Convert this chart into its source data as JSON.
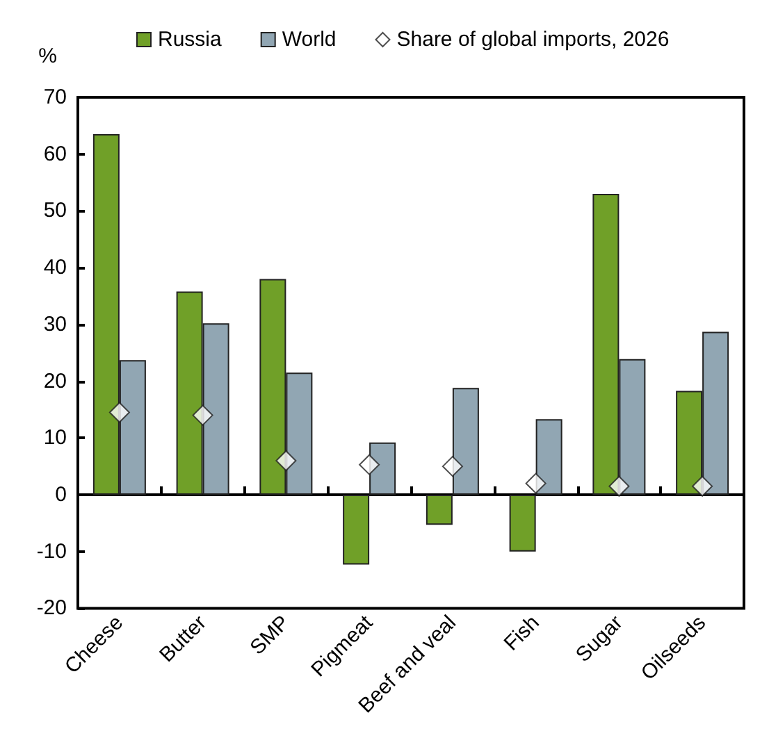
{
  "chart_data": {
    "type": "bar",
    "ylabel": "%",
    "categories": [
      "Cheese",
      "Butter",
      "SMP",
      "Pigmeat",
      "Beef and veal",
      "Fish",
      "Sugar",
      "Oilseeds"
    ],
    "series": [
      {
        "name": "Russia",
        "color": "#70a028",
        "values": [
          63.5,
          35.8,
          38,
          -12.3,
          -5.3,
          -10,
          53,
          18.3
        ]
      },
      {
        "name": "World",
        "color": "#91a6b3",
        "values": [
          23.7,
          30.2,
          21.5,
          9.2,
          18.8,
          13.3,
          23.9,
          28.7
        ]
      },
      {
        "name": "Share of global imports, 2026",
        "type": "scatter",
        "marker": "diamond",
        "color": "#ffffff",
        "values": [
          14.5,
          14,
          6,
          5.3,
          5,
          2,
          1.5,
          1.5
        ]
      }
    ],
    "ylim": [
      -20,
      70
    ],
    "yticks": [
      -20,
      -10,
      0,
      10,
      20,
      30,
      40,
      50,
      60,
      70
    ],
    "legend": "top"
  }
}
